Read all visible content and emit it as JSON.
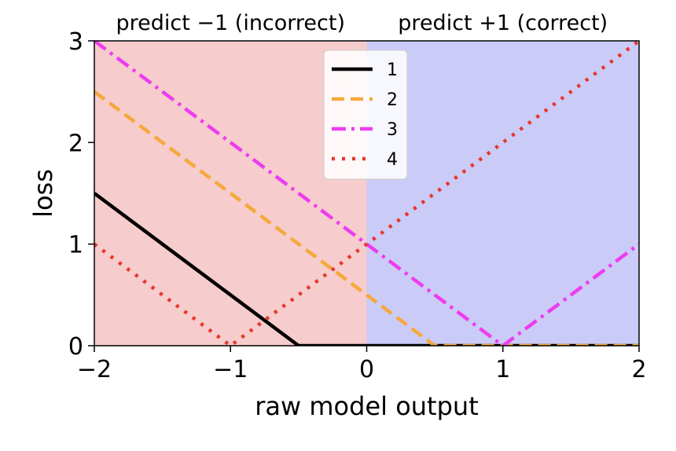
{
  "chart_data": {
    "type": "line",
    "xlabel": "raw model output",
    "ylabel": "loss",
    "xlim": [
      -2,
      2
    ],
    "ylim": [
      0,
      3
    ],
    "xticks": [
      -2,
      -1,
      0,
      1,
      2
    ],
    "xtick_labels": [
      "−2",
      "−1",
      "0",
      "1",
      "2"
    ],
    "yticks": [
      0,
      1,
      2,
      3
    ],
    "ytick_labels": [
      "0",
      "1",
      "2",
      "3"
    ],
    "grid": false,
    "legend_position": "top-center",
    "regions": [
      {
        "label": "predict −1 (incorrect)",
        "x_range": [
          -2,
          0
        ],
        "color": "#f6cccc"
      },
      {
        "label": "predict +1 (correct)",
        "x_range": [
          0,
          2
        ],
        "color": "#cbcbf8"
      }
    ],
    "series": [
      {
        "name": "1",
        "color": "#000000",
        "style": "solid",
        "x": [
          -2,
          -0.5,
          2
        ],
        "y": [
          1.5,
          0,
          0
        ]
      },
      {
        "name": "2",
        "color": "#f5a93b",
        "style": "dashed",
        "x": [
          -2,
          0.5,
          2
        ],
        "y": [
          2.5,
          0,
          0
        ]
      },
      {
        "name": "3",
        "color": "#ee3cf0",
        "style": "dashdot",
        "x": [
          -2,
          1,
          2
        ],
        "y": [
          3,
          0,
          1
        ]
      },
      {
        "name": "4",
        "color": "#e8362c",
        "style": "dotted",
        "x": [
          -2,
          -1,
          2
        ],
        "y": [
          1,
          0,
          3
        ]
      }
    ]
  }
}
